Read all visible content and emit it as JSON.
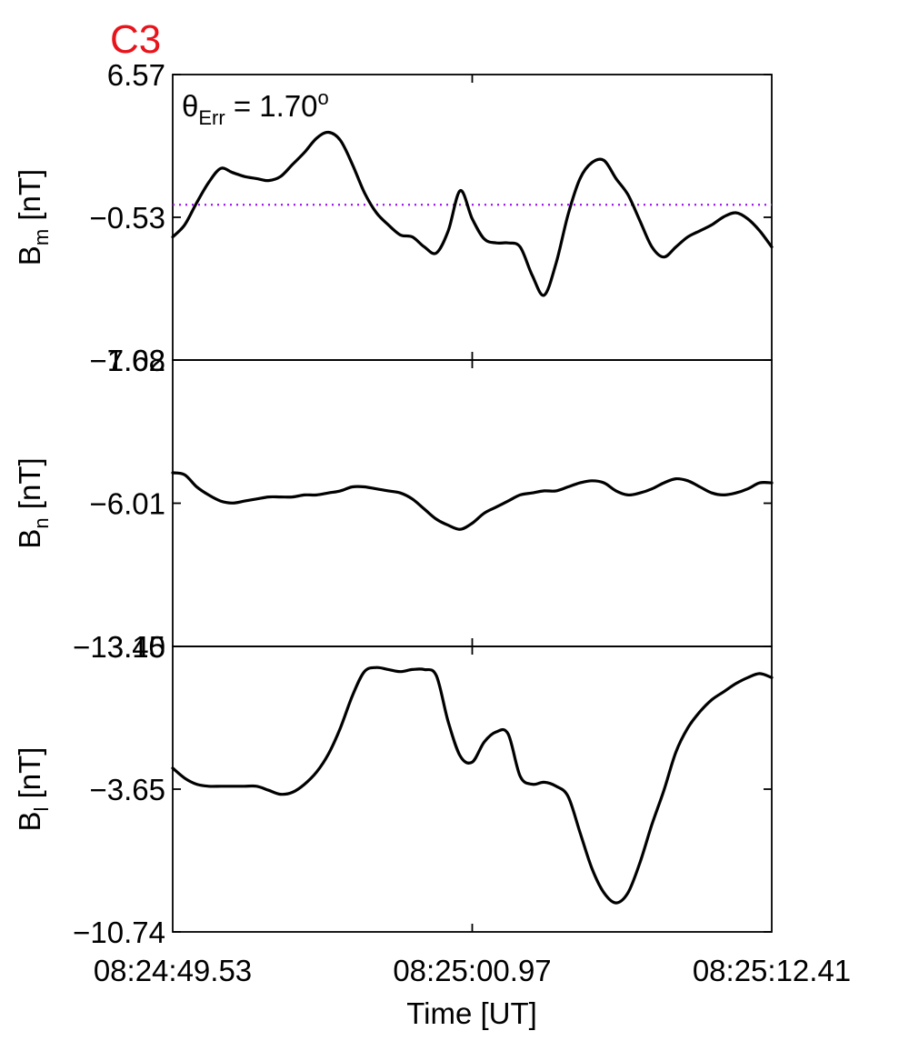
{
  "chart_data": {
    "type": "line",
    "title": "C3",
    "title_color": "#e8141c",
    "xlabel": "Time [UT]",
    "x_ticks": [
      "08:24:49.53",
      "08:25:00.97",
      "08:25:12.41"
    ],
    "x_range": [
      "08:24:49.53",
      "08:25:12.41"
    ],
    "grid": false,
    "annotation": {
      "symbol": "θ",
      "subscript": "Err",
      "text": " =  1.70",
      "superscript": "o"
    },
    "panels": [
      {
        "ylabel": "B",
        "ylabel_sub": "m",
        "ylabel_unit": " [nT]",
        "ylim": [
          -7.62,
          6.57
        ],
        "y_ticks": [
          "6.57",
          "-0.53",
          "-7.62"
        ],
        "reference_line": {
          "y": 0.1,
          "style": "dotted",
          "color": "#a020f0"
        },
        "series": [
          {
            "x": [
              0,
              0.02,
              0.04,
              0.06,
              0.08,
              0.1,
              0.12,
              0.14,
              0.16,
              0.18,
              0.2,
              0.22,
              0.24,
              0.26,
              0.28,
              0.3,
              0.32,
              0.34,
              0.36,
              0.38,
              0.4,
              0.42,
              0.44,
              0.46,
              0.48,
              0.5,
              0.52,
              0.54,
              0.56,
              0.58,
              0.6,
              0.62,
              0.64,
              0.66,
              0.68,
              0.7,
              0.72,
              0.74,
              0.76,
              0.78,
              0.8,
              0.82,
              0.84,
              0.86,
              0.88,
              0.9,
              0.92,
              0.94,
              0.96,
              0.98,
              1
            ],
            "y": [
              -1.5,
              -0.9,
              0.2,
              1.2,
              1.9,
              1.7,
              1.5,
              1.4,
              1.3,
              1.5,
              2.1,
              2.7,
              3.4,
              3.7,
              3.3,
              2.1,
              0.7,
              -0.3,
              -0.9,
              -1.4,
              -1.5,
              -2.0,
              -2.3,
              -1.2,
              0.8,
              -0.6,
              -1.6,
              -1.8,
              -1.8,
              -2.0,
              -3.4,
              -4.4,
              -2.8,
              -0.4,
              1.4,
              2.2,
              2.3,
              1.4,
              0.6,
              -0.7,
              -2.0,
              -2.5,
              -2.0,
              -1.5,
              -1.2,
              -0.9,
              -0.5,
              -0.3,
              -0.6,
              -1.2,
              -2.0
            ]
          }
        ]
      },
      {
        "ylabel": "B",
        "ylabel_sub": "n",
        "ylabel_unit": " [nT]",
        "ylim": [
          -13.1,
          1.08
        ],
        "y_ticks": [
          "1.08",
          "-6.01",
          "-13.10"
        ],
        "series": [
          {
            "x": [
              0,
              0.02,
              0.04,
              0.06,
              0.08,
              0.1,
              0.12,
              0.14,
              0.16,
              0.18,
              0.2,
              0.22,
              0.24,
              0.26,
              0.28,
              0.3,
              0.32,
              0.34,
              0.36,
              0.38,
              0.4,
              0.42,
              0.44,
              0.46,
              0.48,
              0.5,
              0.52,
              0.54,
              0.56,
              0.58,
              0.6,
              0.62,
              0.64,
              0.66,
              0.68,
              0.7,
              0.72,
              0.74,
              0.76,
              0.78,
              0.8,
              0.82,
              0.84,
              0.86,
              0.88,
              0.9,
              0.92,
              0.94,
              0.96,
              0.98,
              1
            ],
            "y": [
              -4.5,
              -4.6,
              -5.2,
              -5.6,
              -5.9,
              -6.0,
              -5.9,
              -5.8,
              -5.7,
              -5.7,
              -5.7,
              -5.6,
              -5.6,
              -5.5,
              -5.4,
              -5.2,
              -5.2,
              -5.3,
              -5.4,
              -5.5,
              -5.8,
              -6.3,
              -6.8,
              -7.1,
              -7.3,
              -7.0,
              -6.5,
              -6.2,
              -5.9,
              -5.6,
              -5.5,
              -5.4,
              -5.4,
              -5.2,
              -5.0,
              -4.9,
              -5.0,
              -5.4,
              -5.6,
              -5.5,
              -5.3,
              -5.0,
              -4.8,
              -4.9,
              -5.2,
              -5.5,
              -5.6,
              -5.5,
              -5.3,
              -5.0,
              -5.0
            ]
          }
        ]
      },
      {
        "ylabel": "B",
        "ylabel_sub": "l",
        "ylabel_unit": " [nT]",
        "ylim": [
          -10.74,
          3.45
        ],
        "y_ticks": [
          "3.45",
          "-3.65",
          "-10.74"
        ],
        "series": [
          {
            "x": [
              0,
              0.02,
              0.04,
              0.06,
              0.08,
              0.1,
              0.12,
              0.14,
              0.16,
              0.18,
              0.2,
              0.22,
              0.24,
              0.26,
              0.28,
              0.3,
              0.32,
              0.34,
              0.36,
              0.38,
              0.4,
              0.42,
              0.44,
              0.46,
              0.48,
              0.5,
              0.52,
              0.54,
              0.56,
              0.58,
              0.6,
              0.62,
              0.64,
              0.66,
              0.68,
              0.7,
              0.72,
              0.74,
              0.76,
              0.78,
              0.8,
              0.82,
              0.84,
              0.86,
              0.88,
              0.9,
              0.92,
              0.94,
              0.96,
              0.98,
              1
            ],
            "y": [
              -2.6,
              -3.1,
              -3.4,
              -3.5,
              -3.5,
              -3.5,
              -3.5,
              -3.5,
              -3.7,
              -3.9,
              -3.8,
              -3.4,
              -2.8,
              -1.9,
              -0.6,
              1.0,
              2.2,
              2.4,
              2.3,
              2.2,
              2.3,
              2.3,
              2.0,
              -0.3,
              -2.0,
              -2.3,
              -1.3,
              -0.8,
              -0.9,
              -3.0,
              -3.4,
              -3.3,
              -3.5,
              -4.0,
              -5.8,
              -7.6,
              -8.8,
              -9.3,
              -8.8,
              -7.3,
              -5.4,
              -3.7,
              -1.8,
              -0.6,
              0.2,
              0.8,
              1.2,
              1.6,
              1.9,
              2.1,
              1.9
            ]
          }
        ]
      }
    ]
  }
}
